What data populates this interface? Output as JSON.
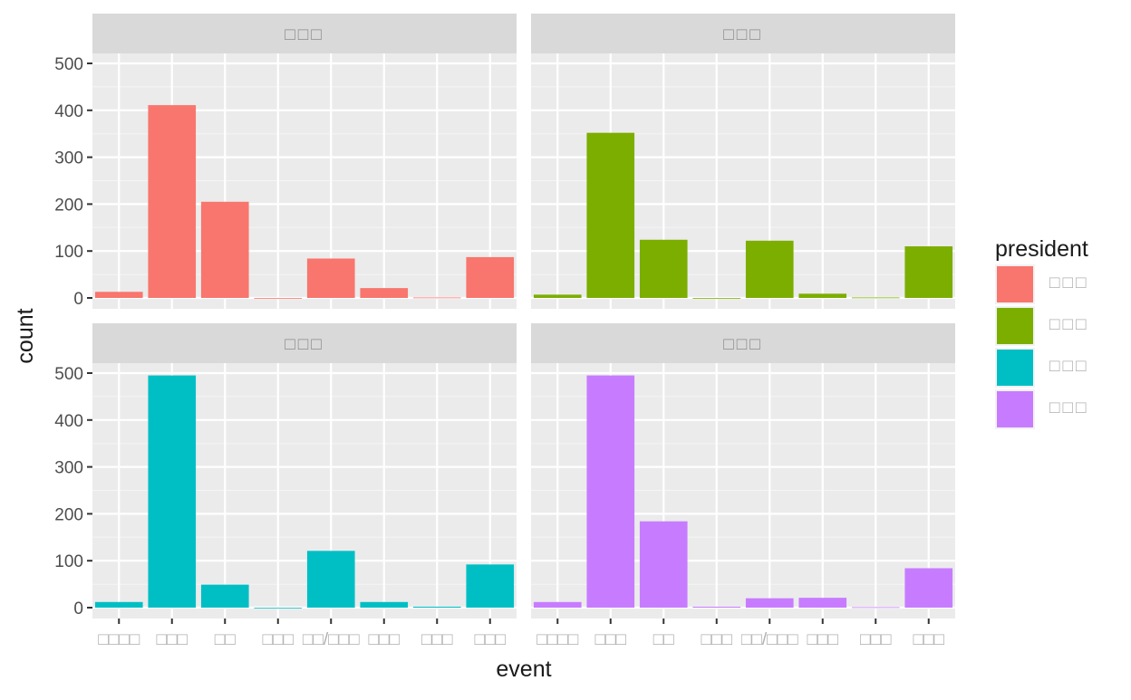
{
  "chart_data": {
    "type": "bar",
    "layout": "facet-grid 2x2",
    "categories": [
      "□□□□",
      "□□□",
      "□□",
      "□□□",
      "□□/□□□",
      "□□□",
      "□□□",
      "□□□"
    ],
    "xlabel": "event",
    "ylabel": "count",
    "ylim": [
      0,
      520
    ],
    "yticks": [
      0,
      100,
      200,
      300,
      400,
      500
    ],
    "grid": true,
    "legend": {
      "title": "president",
      "placement": "right",
      "entries": [
        {
          "label": "□□□",
          "color": "#F8766D"
        },
        {
          "label": "□□□",
          "color": "#7CAE00"
        },
        {
          "label": "□□□",
          "color": "#00BFC4"
        },
        {
          "label": "□□□",
          "color": "#C77CFF"
        }
      ]
    },
    "panels": [
      {
        "strip": "□□□",
        "color": "#F8766D",
        "values": [
          13,
          411,
          205,
          0,
          84,
          21,
          1,
          87
        ]
      },
      {
        "strip": "□□□",
        "color": "#7CAE00",
        "values": [
          7,
          352,
          124,
          0,
          122,
          9,
          1,
          110
        ]
      },
      {
        "strip": "□□□",
        "color": "#00BFC4",
        "values": [
          12,
          495,
          49,
          0,
          121,
          12,
          2,
          92
        ]
      },
      {
        "strip": "□□□",
        "color": "#C77CFF",
        "values": [
          12,
          495,
          184,
          2,
          20,
          21,
          1,
          84
        ]
      }
    ]
  }
}
